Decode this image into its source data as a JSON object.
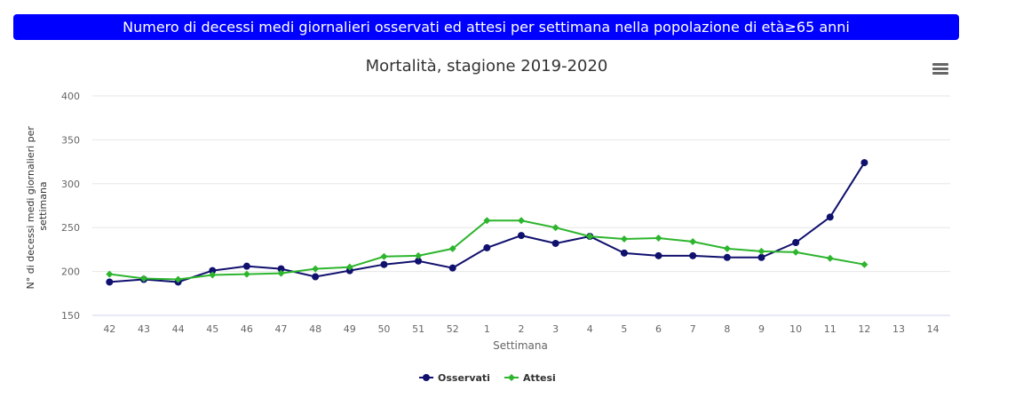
{
  "banner": {
    "text": "Numero di decessi medi giornalieri osservati ed attesi per settimana nella popolazione di età≥65 anni"
  },
  "menu": {
    "icon": "hamburger-menu-icon"
  },
  "colors": {
    "banner_bg": "#0000ff",
    "observed": "#10106e",
    "expected": "#2db52d",
    "grid": "#e6e6e6",
    "axis_text": "#666666"
  },
  "chart_data": {
    "type": "line",
    "title": "Mortalità, stagione 2019-2020",
    "xlabel": "Settimana",
    "ylabel": "N° di decessi medi giornalieri per settimana",
    "categories": [
      "42",
      "43",
      "44",
      "45",
      "46",
      "47",
      "48",
      "49",
      "50",
      "51",
      "52",
      "1",
      "2",
      "3",
      "4",
      "5",
      "6",
      "7",
      "8",
      "9",
      "10",
      "11",
      "12",
      "13",
      "14"
    ],
    "ylim": [
      150,
      400
    ],
    "yticks": [
      150,
      200,
      250,
      300,
      350,
      400
    ],
    "grid": true,
    "legend_position": "bottom-center",
    "series": [
      {
        "name": "Osservati",
        "marker": "circle",
        "values": [
          188,
          191,
          188,
          201,
          206,
          203,
          194,
          201,
          208,
          212,
          204,
          227,
          241,
          232,
          240,
          221,
          218,
          218,
          216,
          216,
          233,
          262,
          324,
          null,
          null
        ]
      },
      {
        "name": "Attesi",
        "marker": "diamond",
        "values": [
          197,
          192,
          191,
          196,
          197,
          198,
          203,
          205,
          217,
          218,
          226,
          258,
          258,
          250,
          240,
          237,
          238,
          234,
          226,
          223,
          222,
          215,
          208,
          null,
          null
        ]
      }
    ]
  }
}
